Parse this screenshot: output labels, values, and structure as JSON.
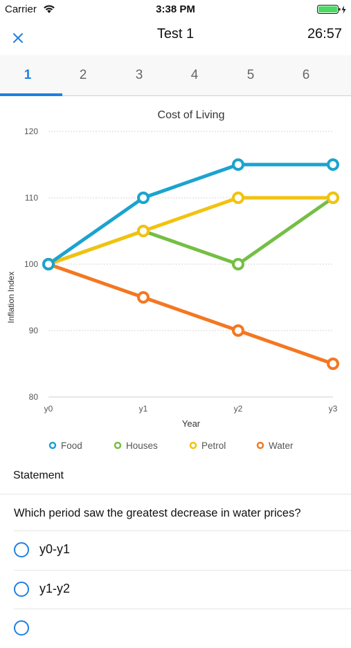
{
  "status_bar": {
    "carrier": "Carrier",
    "time": "3:38 PM",
    "wifi_icon": "wifi-icon",
    "battery_icon": "battery-charging-icon"
  },
  "nav": {
    "title": "Test 1",
    "timer": "26:57",
    "close_icon": "close-icon"
  },
  "tabs": [
    {
      "label": "1",
      "active": true
    },
    {
      "label": "2",
      "active": false
    },
    {
      "label": "3",
      "active": false
    },
    {
      "label": "4",
      "active": false
    },
    {
      "label": "5",
      "active": false
    },
    {
      "label": "6",
      "active": false
    }
  ],
  "chart_data": {
    "type": "line",
    "title": "Cost of Living",
    "xlabel": "Year",
    "ylabel": "Inflation Index",
    "categories": [
      "y0",
      "y1",
      "y2",
      "y3"
    ],
    "ylim": [
      80,
      120
    ],
    "yticks": [
      80,
      90,
      100,
      110,
      120
    ],
    "grid": true,
    "legend_position": "bottom",
    "series": [
      {
        "name": "Food",
        "values": [
          100,
          110,
          115,
          115
        ],
        "color": "#1ba3cf"
      },
      {
        "name": "Houses",
        "values": [
          100,
          105,
          100,
          110
        ],
        "color": "#74bf44"
      },
      {
        "name": "Petrol",
        "values": [
          100,
          105,
          110,
          110
        ],
        "color": "#f2c20f"
      },
      {
        "name": "Water",
        "values": [
          100,
          95,
          90,
          85
        ],
        "color": "#f47721"
      }
    ]
  },
  "statement": {
    "label": "Statement",
    "question": "Which period saw the greatest decrease in water prices?",
    "options": [
      "y0-y1",
      "y1-y2"
    ]
  },
  "colors": {
    "accent": "#1e7fe0"
  }
}
